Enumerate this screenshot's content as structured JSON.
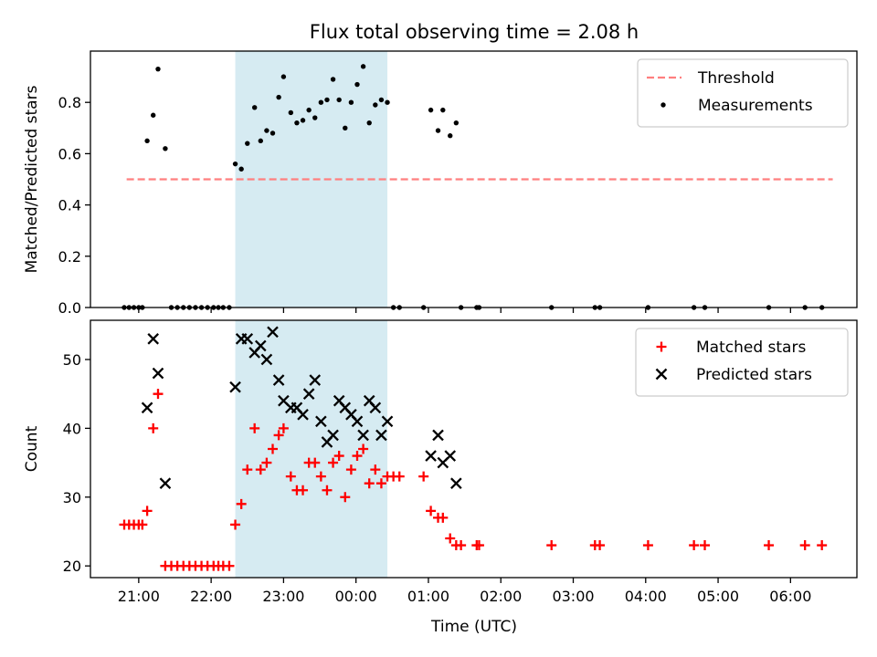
{
  "chart_data": {
    "title": "Flux total observing time = 2.08 h",
    "shaded_interval": [
      "22:20",
      "00:26"
    ],
    "x_axis": {
      "label": "Time (UTC)",
      "range": [
        "20:20",
        "06:55"
      ],
      "ticks": [
        "21:00",
        "22:00",
        "23:00",
        "00:00",
        "01:00",
        "02:00",
        "03:00",
        "04:00",
        "05:00",
        "06:00"
      ]
    },
    "panels": [
      {
        "type": "scatter",
        "ylabel": "Matched/Predicted stars",
        "ylim": [
          0,
          1.0
        ],
        "yticks": [
          "0.0",
          "0.2",
          "0.4",
          "0.6",
          "0.8"
        ],
        "legend_position": "top-right",
        "threshold": {
          "name": "Threshold",
          "value": 0.5,
          "x_range": [
            "20:50",
            "06:35"
          ],
          "color": "#ff7f7f"
        },
        "series": [
          {
            "name": "Measurements",
            "marker": "dot",
            "color": "#000000",
            "points": [
              [
                "20:48",
                0
              ],
              [
                "20:52",
                0
              ],
              [
                "20:56",
                0
              ],
              [
                "21:00",
                0
              ],
              [
                "21:03",
                0
              ],
              [
                "21:07",
                0.65
              ],
              [
                "21:12",
                0.75
              ],
              [
                "21:16",
                0.93
              ],
              [
                "21:22",
                0.62
              ],
              [
                "21:27",
                0
              ],
              [
                "21:32",
                0
              ],
              [
                "21:37",
                0
              ],
              [
                "21:42",
                0
              ],
              [
                "21:47",
                0
              ],
              [
                "21:52",
                0
              ],
              [
                "21:57",
                0
              ],
              [
                "22:02",
                0
              ],
              [
                "22:06",
                0
              ],
              [
                "22:10",
                0
              ],
              [
                "22:15",
                0
              ],
              [
                "22:20",
                0.56
              ],
              [
                "22:25",
                0.54
              ],
              [
                "22:30",
                0.64
              ],
              [
                "22:36",
                0.78
              ],
              [
                "22:41",
                0.65
              ],
              [
                "22:46",
                0.69
              ],
              [
                "22:51",
                0.68
              ],
              [
                "22:56",
                0.82
              ],
              [
                "23:00",
                0.9
              ],
              [
                "23:06",
                0.76
              ],
              [
                "23:11",
                0.72
              ],
              [
                "23:16",
                0.73
              ],
              [
                "23:21",
                0.77
              ],
              [
                "23:26",
                0.74
              ],
              [
                "23:31",
                0.8
              ],
              [
                "23:36",
                0.81
              ],
              [
                "23:41",
                0.89
              ],
              [
                "23:46",
                0.81
              ],
              [
                "23:51",
                0.7
              ],
              [
                "23:56",
                0.8
              ],
              [
                "24:01",
                0.87
              ],
              [
                "24:06",
                0.94
              ],
              [
                "24:11",
                0.72
              ],
              [
                "24:16",
                0.79
              ],
              [
                "24:21",
                0.81
              ],
              [
                "24:26",
                0.8
              ],
              [
                "24:31",
                0
              ],
              [
                "24:36",
                0
              ],
              [
                "24:56",
                0
              ],
              [
                "25:02",
                0.77
              ],
              [
                "25:08",
                0.69
              ],
              [
                "25:12",
                0.77
              ],
              [
                "25:18",
                0.67
              ],
              [
                "25:23",
                0.72
              ],
              [
                "25:27",
                0
              ],
              [
                "25:40",
                0
              ],
              [
                "25:42",
                0
              ],
              [
                "26:42",
                0
              ],
              [
                "27:18",
                0
              ],
              [
                "27:22",
                0
              ],
              [
                "28:02",
                0
              ],
              [
                "28:40",
                0
              ],
              [
                "28:49",
                0
              ],
              [
                "29:42",
                0
              ],
              [
                "30:12",
                0
              ],
              [
                "30:26",
                0
              ]
            ]
          }
        ]
      },
      {
        "type": "scatter",
        "ylabel": "Count",
        "ylim": [
          18.3,
          55.7
        ],
        "yticks": [
          "20",
          "30",
          "40",
          "50"
        ],
        "legend_position": "top-right",
        "series": [
          {
            "name": "Matched stars",
            "marker": "plus",
            "color": "#ff0000",
            "points": [
              [
                "20:48",
                26
              ],
              [
                "20:52",
                26
              ],
              [
                "20:56",
                26
              ],
              [
                "21:00",
                26
              ],
              [
                "21:03",
                26
              ],
              [
                "21:07",
                28
              ],
              [
                "21:12",
                40
              ],
              [
                "21:16",
                45
              ],
              [
                "21:22",
                20
              ],
              [
                "21:27",
                20
              ],
              [
                "21:32",
                20
              ],
              [
                "21:37",
                20
              ],
              [
                "21:42",
                20
              ],
              [
                "21:47",
                20
              ],
              [
                "21:52",
                20
              ],
              [
                "21:57",
                20
              ],
              [
                "22:02",
                20
              ],
              [
                "22:06",
                20
              ],
              [
                "22:10",
                20
              ],
              [
                "22:15",
                20
              ],
              [
                "22:20",
                26
              ],
              [
                "22:25",
                29
              ],
              [
                "22:30",
                34
              ],
              [
                "22:36",
                40
              ],
              [
                "22:41",
                34
              ],
              [
                "22:46",
                35
              ],
              [
                "22:51",
                37
              ],
              [
                "22:56",
                39
              ],
              [
                "23:00",
                40
              ],
              [
                "23:06",
                33
              ],
              [
                "23:11",
                31
              ],
              [
                "23:16",
                31
              ],
              [
                "23:21",
                35
              ],
              [
                "23:26",
                35
              ],
              [
                "23:31",
                33
              ],
              [
                "23:36",
                31
              ],
              [
                "23:41",
                35
              ],
              [
                "23:46",
                36
              ],
              [
                "23:51",
                30
              ],
              [
                "23:56",
                34
              ],
              [
                "24:01",
                36
              ],
              [
                "24:06",
                37
              ],
              [
                "24:11",
                32
              ],
              [
                "24:16",
                34
              ],
              [
                "24:21",
                32
              ],
              [
                "24:26",
                33
              ],
              [
                "24:31",
                33
              ],
              [
                "24:36",
                33
              ],
              [
                "24:56",
                33
              ],
              [
                "25:02",
                28
              ],
              [
                "25:08",
                27
              ],
              [
                "25:12",
                27
              ],
              [
                "25:18",
                24
              ],
              [
                "25:23",
                23
              ],
              [
                "25:27",
                23
              ],
              [
                "25:40",
                23
              ],
              [
                "25:42",
                23
              ],
              [
                "26:42",
                23
              ],
              [
                "27:18",
                23
              ],
              [
                "27:22",
                23
              ],
              [
                "28:02",
                23
              ],
              [
                "28:40",
                23
              ],
              [
                "28:49",
                23
              ],
              [
                "29:42",
                23
              ],
              [
                "30:12",
                23
              ],
              [
                "30:26",
                23
              ]
            ]
          },
          {
            "name": "Predicted stars",
            "marker": "x",
            "color": "#000000",
            "points": [
              [
                "21:07",
                43
              ],
              [
                "21:12",
                53
              ],
              [
                "21:16",
                48
              ],
              [
                "21:22",
                32
              ],
              [
                "22:20",
                46
              ],
              [
                "22:25",
                53
              ],
              [
                "22:30",
                53
              ],
              [
                "22:36",
                51
              ],
              [
                "22:41",
                52
              ],
              [
                "22:46",
                50
              ],
              [
                "22:51",
                54
              ],
              [
                "22:56",
                47
              ],
              [
                "23:00",
                44
              ],
              [
                "23:06",
                43
              ],
              [
                "23:11",
                43
              ],
              [
                "23:16",
                42
              ],
              [
                "23:21",
                45
              ],
              [
                "23:26",
                47
              ],
              [
                "23:31",
                41
              ],
              [
                "23:36",
                38
              ],
              [
                "23:41",
                39
              ],
              [
                "23:46",
                44
              ],
              [
                "23:51",
                43
              ],
              [
                "23:56",
                42
              ],
              [
                "24:01",
                41
              ],
              [
                "24:06",
                39
              ],
              [
                "24:11",
                44
              ],
              [
                "24:16",
                43
              ],
              [
                "24:21",
                39
              ],
              [
                "24:26",
                41
              ],
              [
                "25:02",
                36
              ],
              [
                "25:08",
                39
              ],
              [
                "25:12",
                35
              ],
              [
                "25:18",
                36
              ],
              [
                "25:23",
                32
              ]
            ]
          }
        ]
      }
    ]
  }
}
